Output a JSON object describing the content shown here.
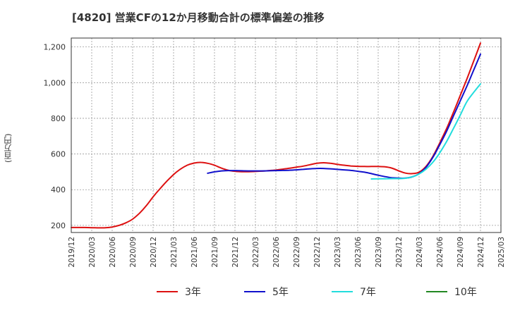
{
  "chart_data": {
    "type": "line",
    "title": "[4820]  営業CFの12か月移動合計の標準偏差の推移",
    "ylabel": "(百万円)",
    "xlabel": "",
    "ylim": [
      160,
      1250
    ],
    "y_ticks": [
      200,
      400,
      600,
      800,
      1000,
      1200
    ],
    "y_tick_labels": [
      "200",
      "400",
      "600",
      "800",
      "1,000",
      "1,200"
    ],
    "x_tick_labels": [
      "2019/12",
      "2020/03",
      "2020/06",
      "2020/09",
      "2020/12",
      "2021/03",
      "2021/06",
      "2021/09",
      "2021/12",
      "2022/03",
      "2022/06",
      "2022/09",
      "2022/12",
      "2023/03",
      "2023/06",
      "2023/09",
      "2023/12",
      "2024/03",
      "2024/06",
      "2024/09",
      "2024/12",
      "2025/03"
    ],
    "grid": true,
    "legend_position": "bottom",
    "series": [
      {
        "name": "3年",
        "color": "#dd1111",
        "points": [
          [
            "2019/12",
            188
          ],
          [
            "2020/01",
            188
          ],
          [
            "2020/02",
            188
          ],
          [
            "2020/03",
            187
          ],
          [
            "2020/04",
            186
          ],
          [
            "2020/05",
            187
          ],
          [
            "2020/06",
            191
          ],
          [
            "2020/07",
            200
          ],
          [
            "2020/08",
            214
          ],
          [
            "2020/09",
            235
          ],
          [
            "2020/10",
            268
          ],
          [
            "2020/11",
            310
          ],
          [
            "2020/12",
            360
          ],
          [
            "2021/01",
            405
          ],
          [
            "2021/02",
            447
          ],
          [
            "2021/03",
            485
          ],
          [
            "2021/04",
            515
          ],
          [
            "2021/05",
            537
          ],
          [
            "2021/06",
            549
          ],
          [
            "2021/07",
            553
          ],
          [
            "2021/08",
            548
          ],
          [
            "2021/09",
            537
          ],
          [
            "2021/10",
            521
          ],
          [
            "2021/11",
            509
          ],
          [
            "2021/12",
            503
          ],
          [
            "2022/01",
            501
          ],
          [
            "2022/02",
            501
          ],
          [
            "2022/03",
            502
          ],
          [
            "2022/04",
            504
          ],
          [
            "2022/05",
            507
          ],
          [
            "2022/06",
            510
          ],
          [
            "2022/07",
            515
          ],
          [
            "2022/08",
            520
          ],
          [
            "2022/09",
            526
          ],
          [
            "2022/10",
            532
          ],
          [
            "2022/11",
            540
          ],
          [
            "2022/12",
            548
          ],
          [
            "2023/01",
            551
          ],
          [
            "2023/02",
            548
          ],
          [
            "2023/03",
            542
          ],
          [
            "2023/04",
            537
          ],
          [
            "2023/05",
            533
          ],
          [
            "2023/06",
            531
          ],
          [
            "2023/07",
            530
          ],
          [
            "2023/08",
            530
          ],
          [
            "2023/09",
            530
          ],
          [
            "2023/10",
            528
          ],
          [
            "2023/11",
            521
          ],
          [
            "2023/12",
            506
          ],
          [
            "2024/01",
            493
          ],
          [
            "2024/02",
            490
          ],
          [
            "2024/03",
            498
          ],
          [
            "2024/04",
            530
          ],
          [
            "2024/05",
            585
          ],
          [
            "2024/06",
            660
          ],
          [
            "2024/07",
            740
          ],
          [
            "2024/08",
            830
          ],
          [
            "2024/09",
            925
          ],
          [
            "2024/10",
            1020
          ],
          [
            "2024/11",
            1120
          ],
          [
            "2024/12",
            1222
          ]
        ]
      },
      {
        "name": "5年",
        "color": "#1111cc",
        "points": [
          [
            "2021/08",
            492
          ],
          [
            "2021/09",
            500
          ],
          [
            "2021/10",
            505
          ],
          [
            "2021/11",
            507
          ],
          [
            "2021/12",
            507
          ],
          [
            "2022/01",
            506
          ],
          [
            "2022/02",
            505
          ],
          [
            "2022/03",
            505
          ],
          [
            "2022/04",
            505
          ],
          [
            "2022/05",
            506
          ],
          [
            "2022/06",
            507
          ],
          [
            "2022/07",
            508
          ],
          [
            "2022/08",
            509
          ],
          [
            "2022/09",
            511
          ],
          [
            "2022/10",
            514
          ],
          [
            "2022/11",
            517
          ],
          [
            "2022/12",
            519
          ],
          [
            "2023/01",
            519
          ],
          [
            "2023/02",
            517
          ],
          [
            "2023/03",
            514
          ],
          [
            "2023/04",
            511
          ],
          [
            "2023/05",
            508
          ],
          [
            "2023/06",
            503
          ],
          [
            "2023/07",
            498
          ],
          [
            "2023/08",
            490
          ],
          [
            "2023/09",
            481
          ],
          [
            "2023/10",
            473
          ],
          [
            "2023/11",
            467
          ],
          [
            "2023/12",
            465
          ],
          [
            "2024/01",
            465
          ],
          [
            "2024/02",
            472
          ],
          [
            "2024/03",
            490
          ],
          [
            "2024/04",
            525
          ],
          [
            "2024/05",
            580
          ],
          [
            "2024/06",
            650
          ],
          [
            "2024/07",
            725
          ],
          [
            "2024/08",
            810
          ],
          [
            "2024/09",
            895
          ],
          [
            "2024/10",
            980
          ],
          [
            "2024/11",
            1070
          ],
          [
            "2024/12",
            1160
          ]
        ]
      },
      {
        "name": "7年",
        "color": "#22dddd",
        "points": [
          [
            "2023/08",
            460
          ],
          [
            "2023/09",
            461
          ],
          [
            "2023/10",
            461
          ],
          [
            "2023/11",
            462
          ],
          [
            "2023/12",
            462
          ],
          [
            "2024/01",
            464
          ],
          [
            "2024/02",
            472
          ],
          [
            "2024/03",
            488
          ],
          [
            "2024/04",
            515
          ],
          [
            "2024/05",
            553
          ],
          [
            "2024/06",
            605
          ],
          [
            "2024/07",
            668
          ],
          [
            "2024/08",
            740
          ],
          [
            "2024/09",
            815
          ],
          [
            "2024/10",
            893
          ],
          [
            "2024/11",
            945
          ],
          [
            "2024/12",
            993
          ]
        ]
      },
      {
        "name": "10年",
        "color": "#228822",
        "points": []
      }
    ]
  }
}
